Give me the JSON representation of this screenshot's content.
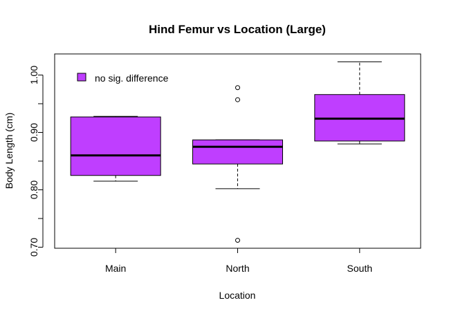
{
  "chart_data": {
    "type": "boxplot",
    "title": "Hind Femur vs Location (Large)",
    "xlabel": "Location",
    "ylabel": "Body Length (cm)",
    "ylim": [
      0.7,
      1.03
    ],
    "yticks": [
      0.7,
      0.75,
      0.8,
      0.85,
      0.9,
      0.95,
      1.0
    ],
    "ytick_labels": [
      "0.70",
      "",
      "0.80",
      "",
      "0.90",
      "",
      "1.00"
    ],
    "categories": [
      "Main",
      "North",
      "South"
    ],
    "box_color": "#BF3EFF",
    "legend": {
      "position": "top-left",
      "entries": [
        {
          "label": "no sig. difference",
          "color": "#BF3EFF"
        }
      ]
    },
    "boxes": [
      {
        "category": "Main",
        "whisker_low": 0.815,
        "q1": 0.825,
        "median": 0.86,
        "q3": 0.927,
        "whisker_high": 0.928,
        "outliers": []
      },
      {
        "category": "North",
        "whisker_low": 0.802,
        "q1": 0.845,
        "median": 0.875,
        "q3": 0.887,
        "whisker_high": 0.887,
        "outliers": [
          0.978,
          0.957,
          0.712
        ]
      },
      {
        "category": "South",
        "whisker_low": 0.88,
        "q1": 0.885,
        "median": 0.924,
        "q3": 0.966,
        "whisker_high": 1.023,
        "outliers": []
      }
    ]
  }
}
